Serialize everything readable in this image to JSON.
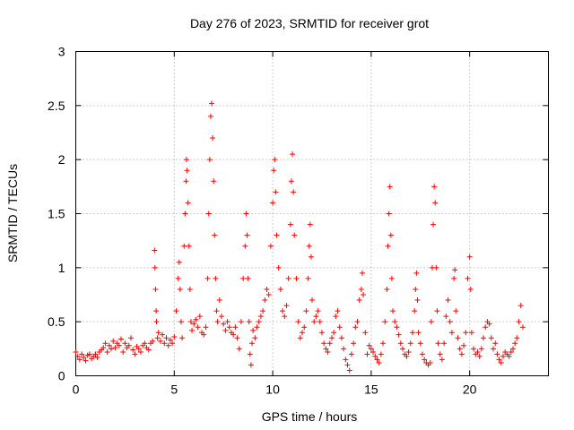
{
  "chart_data": {
    "type": "scatter",
    "title": "Day 276 of 2023, SRMTID for receiver grot",
    "xlabel": "GPS time / hours",
    "ylabel": "SRMTID / TECUs",
    "xlim": [
      0,
      24
    ],
    "ylim": [
      0,
      3
    ],
    "xticks": [
      0,
      5,
      10,
      15,
      20
    ],
    "yticks": [
      0,
      0.5,
      1,
      1.5,
      2,
      2.5,
      3
    ],
    "xtick_labels": [
      "0",
      "5",
      "10",
      "15",
      "20"
    ],
    "ytick_labels": [
      "0",
      "0.5",
      "1",
      "1.5",
      "2",
      "2.5",
      "3"
    ],
    "grid": true,
    "marker": "plus",
    "series": [
      {
        "name": "SRMTID",
        "color": "#ff0000",
        "points": [
          [
            0.0,
            0.22
          ],
          [
            0.1,
            0.18
          ],
          [
            0.2,
            0.15
          ],
          [
            0.3,
            0.2
          ],
          [
            0.4,
            0.17
          ],
          [
            0.5,
            0.14
          ],
          [
            0.6,
            0.19
          ],
          [
            0.7,
            0.2
          ],
          [
            0.8,
            0.16
          ],
          [
            0.9,
            0.18
          ],
          [
            1.0,
            0.2
          ],
          [
            1.1,
            0.17
          ],
          [
            1.2,
            0.22
          ],
          [
            1.3,
            0.24
          ],
          [
            1.4,
            0.26
          ],
          [
            1.5,
            0.3
          ],
          [
            1.6,
            0.22
          ],
          [
            1.7,
            0.28
          ],
          [
            1.8,
            0.25
          ],
          [
            1.9,
            0.32
          ],
          [
            2.0,
            0.26
          ],
          [
            2.1,
            0.3
          ],
          [
            2.2,
            0.28
          ],
          [
            2.3,
            0.34
          ],
          [
            2.4,
            0.22
          ],
          [
            2.5,
            0.3
          ],
          [
            2.6,
            0.26
          ],
          [
            2.7,
            0.28
          ],
          [
            2.8,
            0.35
          ],
          [
            2.9,
            0.24
          ],
          [
            3.0,
            0.2
          ],
          [
            3.1,
            0.27
          ],
          [
            3.2,
            0.25
          ],
          [
            3.3,
            0.22
          ],
          [
            3.4,
            0.28
          ],
          [
            3.5,
            0.3
          ],
          [
            3.6,
            0.26
          ],
          [
            3.7,
            0.24
          ],
          [
            3.8,
            0.3
          ],
          [
            3.9,
            0.32
          ],
          [
            4.0,
            1.16
          ],
          [
            4.02,
            1.0
          ],
          [
            4.05,
            0.8
          ],
          [
            4.08,
            0.6
          ],
          [
            4.1,
            0.5
          ],
          [
            4.15,
            0.35
          ],
          [
            4.2,
            0.4
          ],
          [
            4.3,
            0.32
          ],
          [
            4.4,
            0.38
          ],
          [
            4.5,
            0.3
          ],
          [
            4.6,
            0.35
          ],
          [
            4.7,
            0.28
          ],
          [
            4.8,
            0.33
          ],
          [
            4.9,
            0.3
          ],
          [
            5.0,
            0.36
          ],
          [
            5.1,
            0.6
          ],
          [
            5.2,
            0.9
          ],
          [
            5.25,
            1.05
          ],
          [
            5.3,
            0.8
          ],
          [
            5.35,
            0.5
          ],
          [
            5.4,
            0.35
          ],
          [
            5.5,
            1.2
          ],
          [
            5.55,
            1.5
          ],
          [
            5.6,
            1.8
          ],
          [
            5.62,
            2.0
          ],
          [
            5.65,
            1.9
          ],
          [
            5.7,
            1.6
          ],
          [
            5.75,
            1.2
          ],
          [
            5.8,
            0.8
          ],
          [
            5.85,
            0.5
          ],
          [
            5.9,
            0.42
          ],
          [
            6.0,
            0.48
          ],
          [
            6.1,
            0.52
          ],
          [
            6.2,
            0.45
          ],
          [
            6.3,
            0.55
          ],
          [
            6.4,
            0.4
          ],
          [
            6.5,
            0.38
          ],
          [
            6.6,
            0.45
          ],
          [
            6.7,
            0.9
          ],
          [
            6.75,
            1.5
          ],
          [
            6.8,
            2.0
          ],
          [
            6.85,
            2.4
          ],
          [
            6.9,
            2.52
          ],
          [
            6.95,
            2.2
          ],
          [
            7.0,
            1.8
          ],
          [
            7.05,
            1.3
          ],
          [
            7.1,
            0.9
          ],
          [
            7.15,
            0.6
          ],
          [
            7.2,
            0.5
          ],
          [
            7.3,
            0.7
          ],
          [
            7.4,
            0.55
          ],
          [
            7.5,
            0.48
          ],
          [
            7.6,
            0.42
          ],
          [
            7.7,
            0.5
          ],
          [
            7.8,
            0.45
          ],
          [
            7.9,
            0.4
          ],
          [
            8.0,
            0.38
          ],
          [
            8.1,
            0.45
          ],
          [
            8.2,
            0.35
          ],
          [
            8.3,
            0.25
          ],
          [
            8.4,
            0.5
          ],
          [
            8.5,
            0.9
          ],
          [
            8.6,
            1.2
          ],
          [
            8.65,
            1.5
          ],
          [
            8.7,
            1.3
          ],
          [
            8.75,
            0.9
          ],
          [
            8.8,
            0.5
          ],
          [
            8.85,
            0.2
          ],
          [
            8.9,
            0.1
          ],
          [
            8.95,
            0.3
          ],
          [
            9.0,
            0.42
          ],
          [
            9.1,
            0.35
          ],
          [
            9.2,
            0.45
          ],
          [
            9.3,
            0.5
          ],
          [
            9.4,
            0.55
          ],
          [
            9.5,
            0.6
          ],
          [
            9.6,
            0.7
          ],
          [
            9.7,
            0.8
          ],
          [
            9.8,
            0.75
          ],
          [
            9.9,
            1.2
          ],
          [
            10.0,
            1.6
          ],
          [
            10.05,
            1.9
          ],
          [
            10.1,
            2.0
          ],
          [
            10.15,
            1.7
          ],
          [
            10.2,
            1.3
          ],
          [
            10.3,
            1.0
          ],
          [
            10.4,
            0.8
          ],
          [
            10.5,
            0.6
          ],
          [
            10.6,
            0.55
          ],
          [
            10.7,
            0.65
          ],
          [
            10.8,
            0.9
          ],
          [
            10.9,
            1.4
          ],
          [
            10.95,
            1.8
          ],
          [
            11.0,
            2.05
          ],
          [
            11.05,
            1.7
          ],
          [
            11.1,
            1.3
          ],
          [
            11.2,
            0.9
          ],
          [
            11.3,
            0.5
          ],
          [
            11.4,
            0.35
          ],
          [
            11.5,
            0.4
          ],
          [
            11.6,
            0.45
          ],
          [
            11.7,
            0.6
          ],
          [
            11.8,
            0.9
          ],
          [
            11.85,
            1.2
          ],
          [
            11.9,
            1.4
          ],
          [
            11.95,
            1.1
          ],
          [
            12.0,
            0.7
          ],
          [
            12.1,
            0.5
          ],
          [
            12.2,
            0.55
          ],
          [
            12.3,
            0.6
          ],
          [
            12.4,
            0.5
          ],
          [
            12.5,
            0.4
          ],
          [
            12.6,
            0.3
          ],
          [
            12.7,
            0.25
          ],
          [
            12.8,
            0.22
          ],
          [
            12.9,
            0.3
          ],
          [
            13.0,
            0.35
          ],
          [
            13.1,
            0.4
          ],
          [
            13.2,
            0.55
          ],
          [
            13.3,
            0.6
          ],
          [
            13.4,
            0.45
          ],
          [
            13.5,
            0.35
          ],
          [
            13.6,
            0.25
          ],
          [
            13.7,
            0.15
          ],
          [
            13.8,
            0.1
          ],
          [
            13.9,
            0.05
          ],
          [
            14.0,
            0.2
          ],
          [
            14.1,
            0.3
          ],
          [
            14.2,
            0.45
          ],
          [
            14.3,
            0.5
          ],
          [
            14.4,
            0.7
          ],
          [
            14.5,
            0.8
          ],
          [
            14.55,
            0.95
          ],
          [
            14.6,
            0.75
          ],
          [
            14.7,
            0.4
          ],
          [
            14.8,
            0.2
          ],
          [
            14.9,
            0.28
          ],
          [
            15.0,
            0.25
          ],
          [
            15.1,
            0.22
          ],
          [
            15.2,
            0.18
          ],
          [
            15.3,
            0.15
          ],
          [
            15.4,
            0.12
          ],
          [
            15.5,
            0.2
          ],
          [
            15.6,
            0.3
          ],
          [
            15.7,
            0.5
          ],
          [
            15.8,
            0.8
          ],
          [
            15.85,
            1.2
          ],
          [
            15.9,
            1.5
          ],
          [
            15.95,
            1.75
          ],
          [
            16.0,
            1.3
          ],
          [
            16.05,
            0.9
          ],
          [
            16.1,
            0.6
          ],
          [
            16.2,
            0.5
          ],
          [
            16.3,
            0.45
          ],
          [
            16.4,
            0.38
          ],
          [
            16.5,
            0.3
          ],
          [
            16.6,
            0.25
          ],
          [
            16.7,
            0.2
          ],
          [
            16.8,
            0.18
          ],
          [
            16.9,
            0.22
          ],
          [
            17.0,
            0.3
          ],
          [
            17.1,
            0.4
          ],
          [
            17.2,
            0.6
          ],
          [
            17.25,
            0.8
          ],
          [
            17.3,
            0.95
          ],
          [
            17.35,
            0.7
          ],
          [
            17.4,
            0.4
          ],
          [
            17.5,
            0.3
          ],
          [
            17.6,
            0.2
          ],
          [
            17.7,
            0.15
          ],
          [
            17.8,
            0.12
          ],
          [
            17.9,
            0.1
          ],
          [
            18.0,
            0.12
          ],
          [
            18.05,
            0.5
          ],
          [
            18.1,
            1.0
          ],
          [
            18.15,
            1.4
          ],
          [
            18.2,
            1.75
          ],
          [
            18.25,
            1.6
          ],
          [
            18.3,
            1.0
          ],
          [
            18.35,
            0.6
          ],
          [
            18.4,
            0.3
          ],
          [
            18.5,
            0.2
          ],
          [
            18.6,
            0.15
          ],
          [
            18.7,
            0.3
          ],
          [
            18.8,
            0.55
          ],
          [
            18.9,
            0.7
          ],
          [
            19.0,
            0.5
          ],
          [
            19.1,
            0.4
          ],
          [
            19.2,
            0.9
          ],
          [
            19.25,
            0.98
          ],
          [
            19.3,
            0.6
          ],
          [
            19.4,
            0.35
          ],
          [
            19.5,
            0.25
          ],
          [
            19.6,
            0.2
          ],
          [
            19.7,
            0.28
          ],
          [
            19.8,
            0.4
          ],
          [
            19.9,
            0.9
          ],
          [
            20.0,
            1.1
          ],
          [
            20.05,
            0.8
          ],
          [
            20.1,
            0.4
          ],
          [
            20.2,
            0.25
          ],
          [
            20.3,
            0.2
          ],
          [
            20.4,
            0.22
          ],
          [
            20.5,
            0.18
          ],
          [
            20.6,
            0.25
          ],
          [
            20.7,
            0.35
          ],
          [
            20.8,
            0.45
          ],
          [
            20.9,
            0.5
          ],
          [
            21.0,
            0.48
          ],
          [
            21.1,
            0.35
          ],
          [
            21.2,
            0.25
          ],
          [
            21.3,
            0.3
          ],
          [
            21.4,
            0.2
          ],
          [
            21.5,
            0.15
          ],
          [
            21.6,
            0.12
          ],
          [
            21.7,
            0.18
          ],
          [
            21.8,
            0.22
          ],
          [
            21.9,
            0.2
          ],
          [
            22.0,
            0.18
          ],
          [
            22.1,
            0.22
          ],
          [
            22.2,
            0.25
          ],
          [
            22.3,
            0.3
          ],
          [
            22.4,
            0.35
          ],
          [
            22.5,
            0.5
          ],
          [
            22.6,
            0.65
          ],
          [
            22.7,
            0.45
          ]
        ]
      }
    ]
  }
}
